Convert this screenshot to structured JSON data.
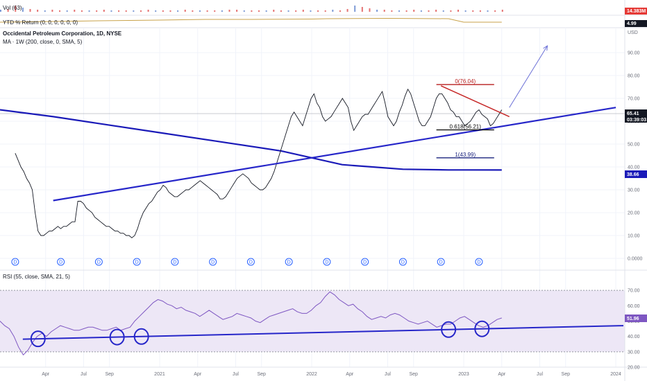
{
  "chart_data": {
    "type": "line",
    "main_pane": {
      "title": "Occidental Petroleum Corporation, 1D, NYSE",
      "ma_label": "MA · 1W (200, close, 0, SMA, 5)",
      "currency": "USD",
      "y_ticks": [
        "90.00",
        "80.00",
        "70.00",
        "60.00",
        "50.00",
        "40.00",
        "30.00",
        "20.00",
        "10.00",
        "0.0000"
      ],
      "ylim": [
        0,
        100
      ],
      "price_label": "65.41",
      "countdown_label": "03:39:03",
      "ma_value_label": "38.66",
      "price_series": {
        "name": "OXY close",
        "values": [
          46,
          43,
          40,
          38,
          35,
          33,
          30,
          20,
          12,
          10,
          10,
          11,
          12,
          12,
          13,
          14,
          13,
          14,
          14,
          15,
          16,
          16,
          25,
          25,
          24,
          22,
          21,
          20,
          18,
          17,
          16,
          15,
          14,
          14,
          13,
          12,
          12,
          11,
          11,
          10,
          10,
          9,
          10,
          13,
          17,
          20,
          22,
          24,
          25,
          27,
          29,
          30,
          32,
          31,
          29,
          28,
          27,
          27,
          28,
          29,
          30,
          30,
          31,
          32,
          33,
          34,
          33,
          32,
          31,
          30,
          29,
          28,
          26,
          26,
          27,
          29,
          31,
          33,
          35,
          36,
          37,
          36,
          35,
          33,
          32,
          31,
          30,
          30,
          31,
          33,
          35,
          38,
          42,
          46,
          50,
          54,
          58,
          62,
          64,
          62,
          60,
          58,
          62,
          66,
          70,
          72,
          68,
          66,
          62,
          60,
          61,
          62,
          64,
          66,
          68,
          70,
          68,
          66,
          60,
          56,
          58,
          60,
          62,
          63,
          63,
          65,
          67,
          69,
          71,
          73,
          68,
          62,
          60,
          58,
          60,
          64,
          67,
          71,
          74,
          72,
          68,
          64,
          60,
          58,
          58,
          60,
          62,
          66,
          70,
          72,
          72,
          70,
          68,
          65,
          64,
          62,
          62,
          60,
          58,
          59,
          60,
          62,
          64,
          65,
          63,
          62,
          61,
          58,
          59,
          61,
          63,
          65
        ],
        "t_start": 2020.05,
        "t_end": 2023.25
      },
      "ma_series": {
        "name": "MA 200W",
        "x": [
          2019.95,
          2020.3,
          2020.6,
          2021.0,
          2021.4,
          2021.8,
          2022.0,
          2022.2,
          2022.4,
          2022.6,
          2022.9,
          2023.0,
          2023.25
        ],
        "values": [
          65,
          62,
          59,
          55,
          51,
          47,
          44,
          41,
          40,
          39,
          38.7,
          38.7,
          38.66
        ]
      },
      "uptrend_line": {
        "x": [
          2020.3,
          2024.0
        ],
        "y": [
          25.3,
          66
        ]
      },
      "downtrend_line": {
        "x": [
          2022.85,
          2023.3
        ],
        "y": [
          75.5,
          62
        ]
      },
      "projection_arrow": {
        "x": [
          2023.3,
          2023.55
        ],
        "y": [
          66,
          93
        ]
      },
      "fib_levels": [
        {
          "label": "0(76.04)",
          "value": 76.04,
          "color": "#b71c1c"
        },
        {
          "label": "0.618(56.21)",
          "value": 56.21,
          "color": "#000000"
        },
        {
          "label": "1(43.99)",
          "value": 43.99,
          "color": "#1a237e"
        }
      ],
      "dividend_marks": {
        "label": "D",
        "x": [
          2020.05,
          2020.35,
          2020.6,
          2020.85,
          2021.1,
          2021.35,
          2021.6,
          2021.85,
          2022.1,
          2022.35,
          2022.6,
          2022.85,
          2023.1
        ]
      }
    },
    "volume_pane": {
      "title": "Vol (63)",
      "value_label": "14.383M"
    },
    "ytd_pane": {
      "title": "YTD % Return (0, 0, 0, 0, 0, 0)",
      "value_label": "4.99"
    },
    "rsi_pane": {
      "title": "RSI (55, close, SMA, 21, 5)",
      "y_ticks": [
        "70.00",
        "60.00",
        "50.00",
        "40.00",
        "30.00",
        "20.00"
      ],
      "ylim": [
        20,
        75
      ],
      "band": [
        30,
        70
      ],
      "value_label": "51.96",
      "rsi_series": {
        "name": "RSI",
        "values": [
          50,
          47,
          45,
          40,
          33,
          28,
          31,
          36,
          40,
          42,
          40,
          43,
          45,
          47,
          46,
          45,
          44,
          44,
          45,
          46,
          46,
          45,
          44,
          44,
          45,
          46,
          44,
          45,
          46,
          50,
          53,
          56,
          59,
          62,
          64,
          63,
          61,
          60,
          58,
          59,
          57,
          56,
          55,
          53,
          55,
          57,
          55,
          53,
          51,
          52,
          53,
          55,
          54,
          53,
          52,
          50,
          49,
          51,
          53,
          54,
          55,
          56,
          57,
          58,
          56,
          55,
          55,
          57,
          60,
          62,
          66,
          69,
          67,
          64,
          62,
          60,
          61,
          58,
          56,
          53,
          51,
          52,
          53,
          52,
          54,
          55,
          54,
          52,
          50,
          49,
          48,
          49,
          50,
          48,
          46,
          47,
          48,
          48,
          50,
          52,
          53,
          51,
          49,
          47,
          46,
          47,
          49,
          51,
          52
        ],
        "t_start": 2019.95,
        "t_end": 2023.25
      },
      "trend_line": {
        "x": [
          2020.1,
          2024.05
        ],
        "y": [
          38.2,
          47
        ]
      },
      "circles_x": [
        2020.2,
        2020.72,
        2020.88,
        2022.9,
        2023.12
      ]
    },
    "x_ticks": [
      {
        "label": "Apr",
        "t": 2020.25
      },
      {
        "label": "Jul",
        "t": 2020.5
      },
      {
        "label": "Sep",
        "t": 2020.67
      },
      {
        "label": "2021",
        "t": 2021.0
      },
      {
        "label": "Apr",
        "t": 2021.25
      },
      {
        "label": "Jul",
        "t": 2021.5
      },
      {
        "label": "Sep",
        "t": 2021.67
      },
      {
        "label": "2022",
        "t": 2022.0
      },
      {
        "label": "Apr",
        "t": 2022.25
      },
      {
        "label": "Jul",
        "t": 2022.5
      },
      {
        "label": "Sep",
        "t": 2022.67
      },
      {
        "label": "2023",
        "t": 2023.0
      },
      {
        "label": "Apr",
        "t": 2023.25
      },
      {
        "label": "Jul",
        "t": 2023.5
      },
      {
        "label": "Sep",
        "t": 2023.67
      },
      {
        "label": "2024",
        "t": 2024.0
      }
    ],
    "colors": {
      "price": "#131722",
      "ma": "#1a1ab8",
      "trend": "#2626c9",
      "downtrend": "#c62828",
      "arrow": "#6a6fd6",
      "rsi": "#7e57c2",
      "rsi_band": "#ede7f6",
      "price_badge": "#131722",
      "ma_badge": "#1a1ab8",
      "vol_badge": "#e53935",
      "ytd_badge": "#131722",
      "rsi_badge": "#7e57c2"
    }
  }
}
